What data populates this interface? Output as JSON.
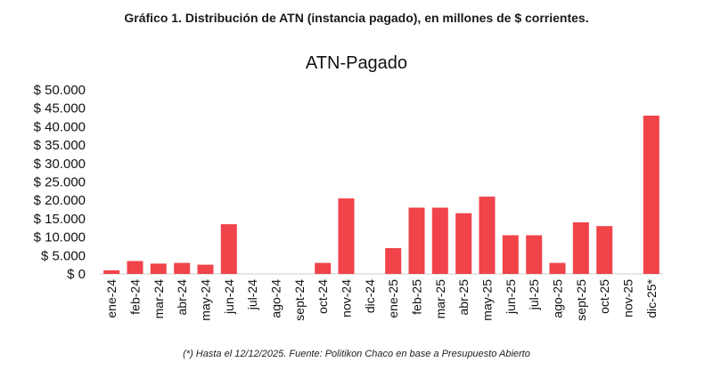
{
  "caption": "Gráfico 1. Distribución de ATN (instancia pagado), en millones de $ corrientes.",
  "footnote": "(*) Hasta el 12/12/2025. Fuente: Politikon Chaco en base a Presupuesto Abierto",
  "chart_data": {
    "type": "bar",
    "title": "ATN-Pagado",
    "xlabel": "",
    "ylabel": "",
    "ylim": [
      0,
      50000
    ],
    "y_ticks": [
      0,
      5000,
      10000,
      15000,
      20000,
      25000,
      30000,
      35000,
      40000,
      45000,
      50000
    ],
    "y_tick_labels": [
      "$ 0",
      "$ 5.000",
      "$ 10.000",
      "$ 15.000",
      "$ 20.000",
      "$ 25.000",
      "$ 30.000",
      "$ 35.000",
      "$ 40.000",
      "$ 45.000",
      "$ 50.000"
    ],
    "grid": false,
    "bar_color": "#f0434a",
    "categories": [
      "ene-24",
      "feb-24",
      "mar-24",
      "abr-24",
      "may-24",
      "jun-24",
      "jul-24",
      "ago-24",
      "sept-24",
      "oct-24",
      "nov-24",
      "dic-24",
      "ene-25",
      "feb-25",
      "mar-25",
      "abr-25",
      "may-25",
      "jun-25",
      "jul-25",
      "ago-25",
      "sept-25",
      "oct-25",
      "nov-25",
      "dic-25*"
    ],
    "values": [
      1000,
      3500,
      2800,
      3000,
      2500,
      13500,
      0,
      0,
      0,
      3000,
      20500,
      0,
      7000,
      18000,
      18000,
      16500,
      21000,
      10500,
      10500,
      3000,
      14000,
      13000,
      0,
      43000
    ]
  }
}
